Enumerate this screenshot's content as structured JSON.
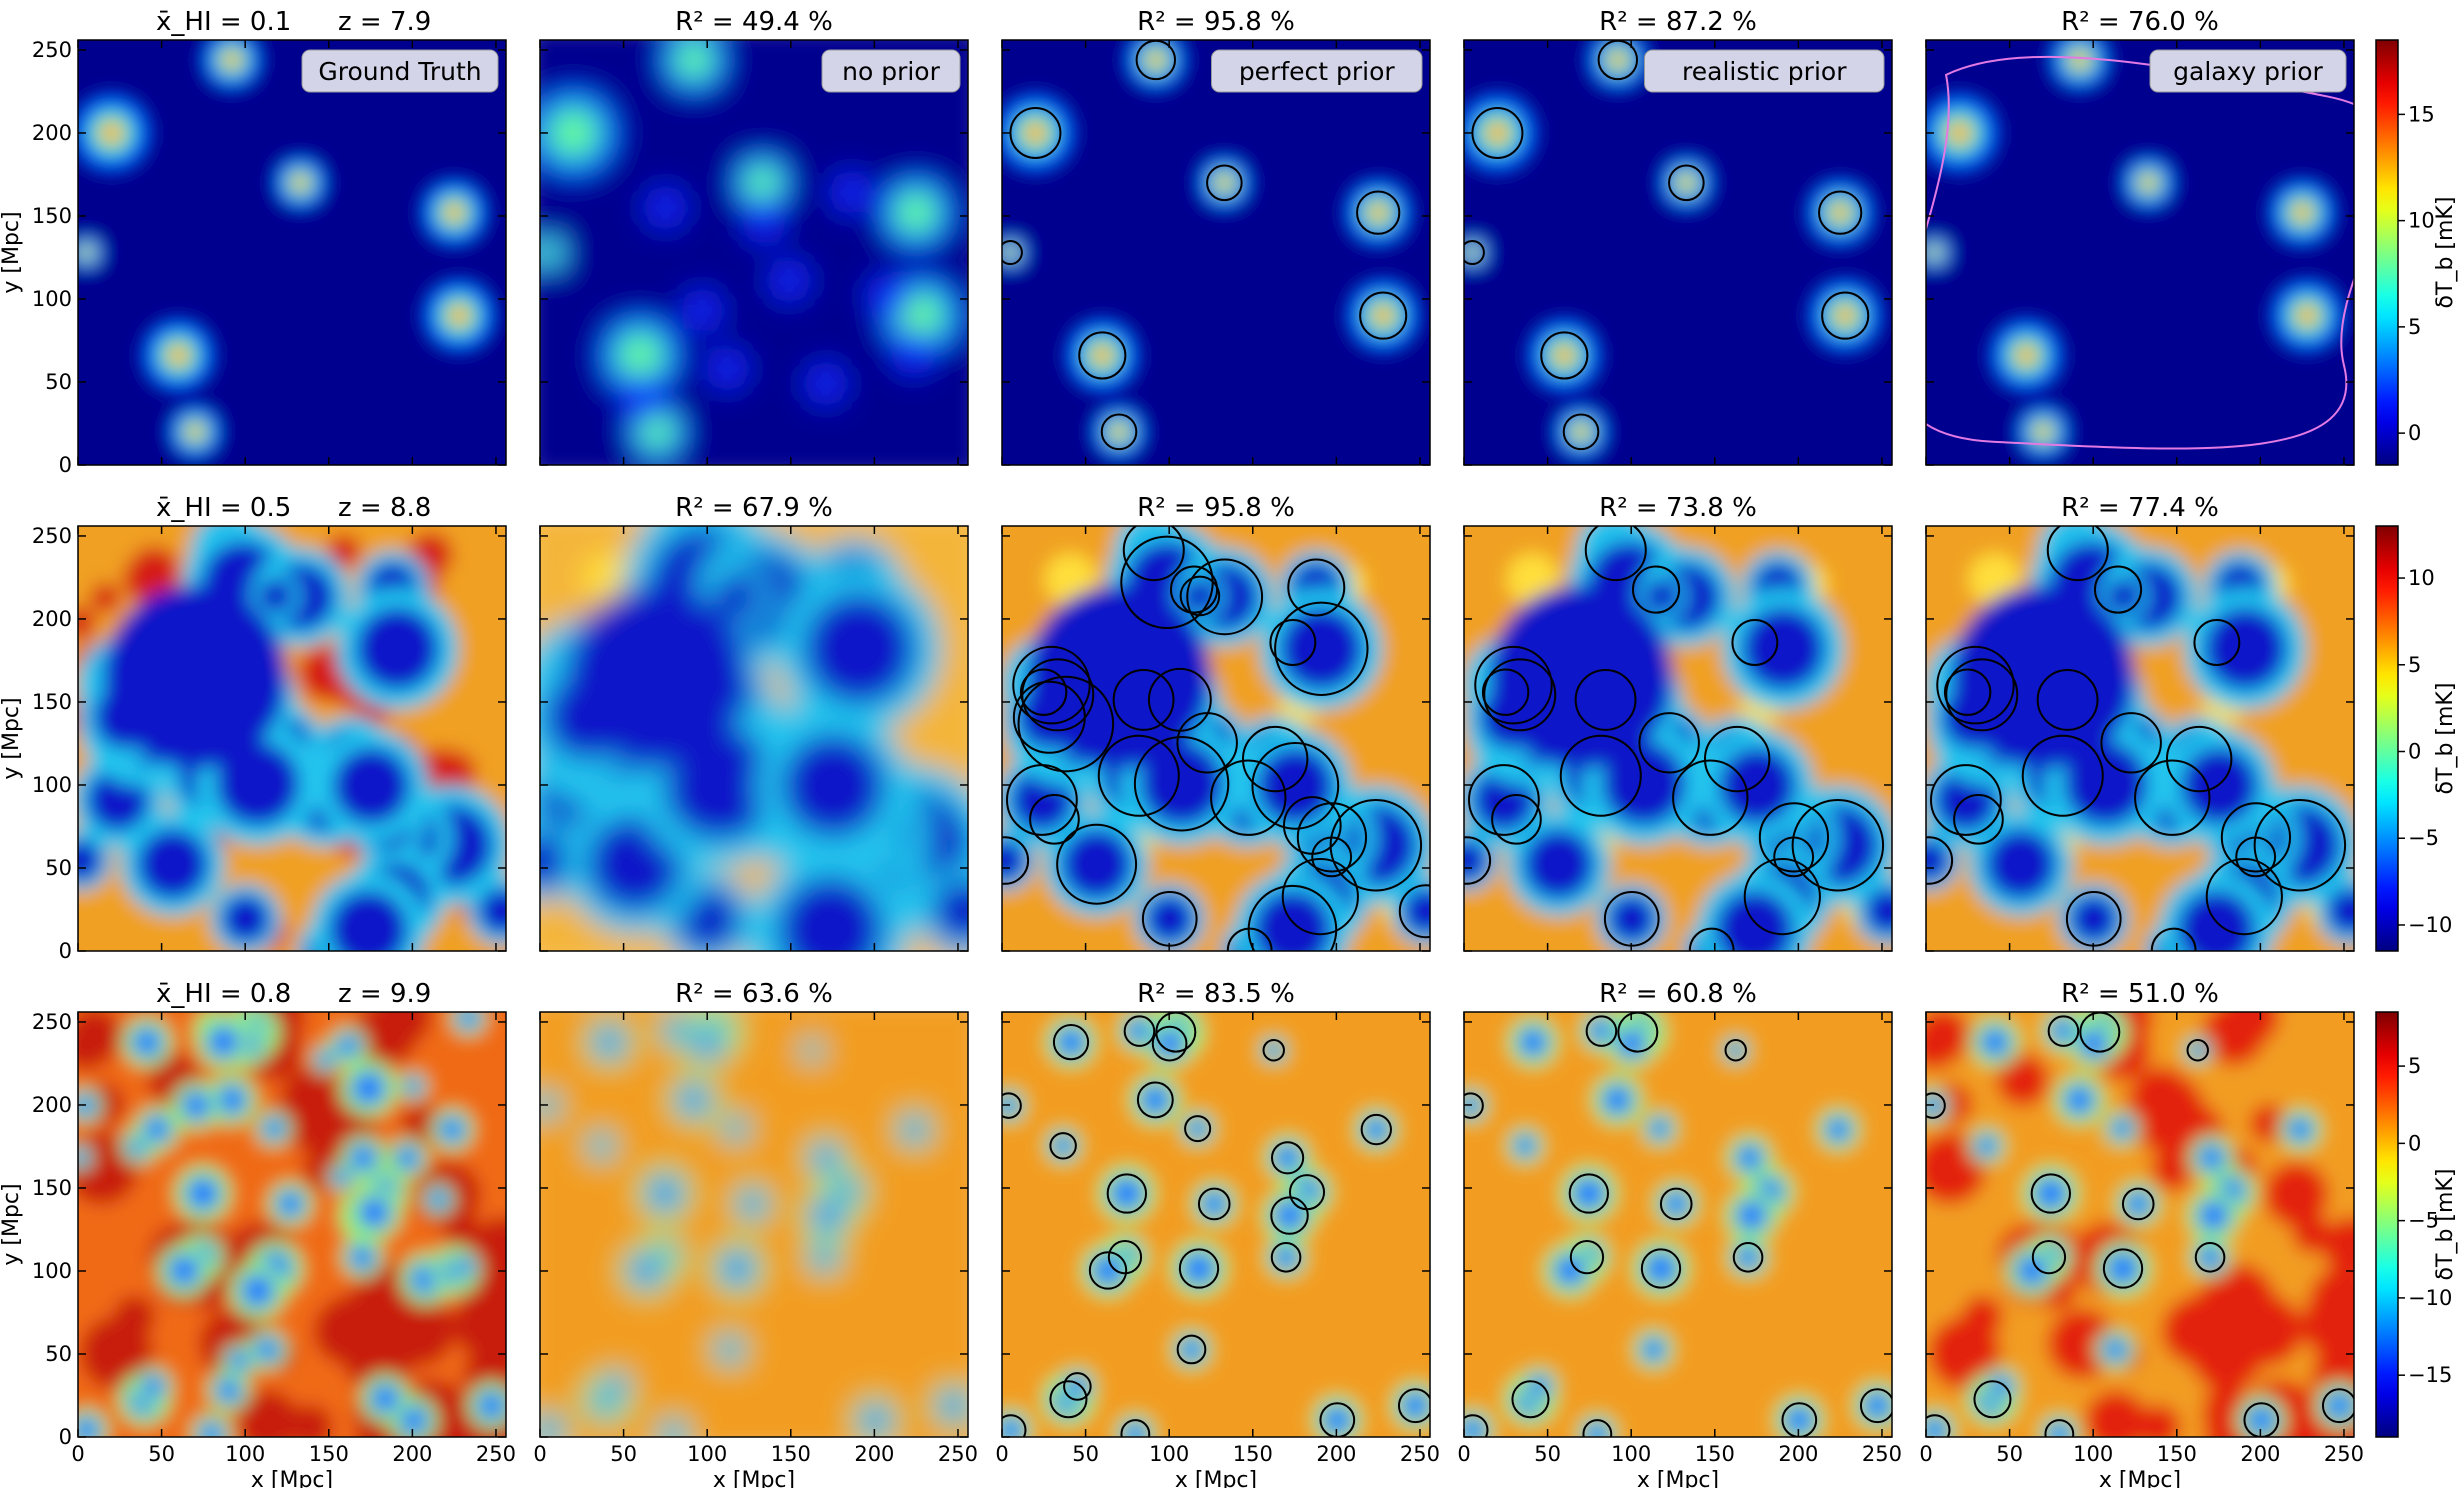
{
  "chart_data": {
    "type": "heatmap",
    "columns": [
      "Ground Truth",
      "no prior",
      "perfect prior",
      "realistic prior",
      "galaxy prior"
    ],
    "x_axis": {
      "label": "x [Mpc]",
      "range": [
        0,
        256
      ],
      "ticks": [
        0,
        50,
        100,
        150,
        200,
        250
      ]
    },
    "y_axis": {
      "label": "y [Mpc]",
      "range": [
        0,
        256
      ],
      "ticks": [
        0,
        50,
        100,
        150,
        200,
        250
      ]
    },
    "colorbar_label": "δT_b [mK]",
    "colormap": "jet",
    "rows": [
      {
        "title_xhi": "x̄_HI = 0.1",
        "title_z": "z = 7.9",
        "r2": [
          "R² = 49.4 %",
          "R² = 95.8 %",
          "R² = 87.2 %",
          "R² = 76.0 %"
        ],
        "colorbar_range": [
          -1.5,
          18.5
        ],
        "colorbar_ticks": [
          0,
          5,
          10,
          15
        ]
      },
      {
        "title_xhi": "x̄_HI = 0.5",
        "title_z": "z = 8.8",
        "r2": [
          "R² = 67.9 %",
          "R² = 95.8 %",
          "R² = 73.8 %",
          "R² = 77.4 %"
        ],
        "colorbar_range": [
          -11.5,
          13
        ],
        "colorbar_ticks": [
          -10,
          -5,
          0,
          5,
          10
        ]
      },
      {
        "title_xhi": "x̄_HI = 0.8",
        "title_z": "z = 9.9",
        "r2": [
          "R² = 63.6 %",
          "R² = 83.5 %",
          "R² = 60.8 %",
          "R² = 51.0 %"
        ],
        "colorbar_range": [
          -19,
          8.5
        ],
        "colorbar_ticks": [
          -15,
          -10,
          -5,
          0,
          5
        ]
      }
    ]
  }
}
